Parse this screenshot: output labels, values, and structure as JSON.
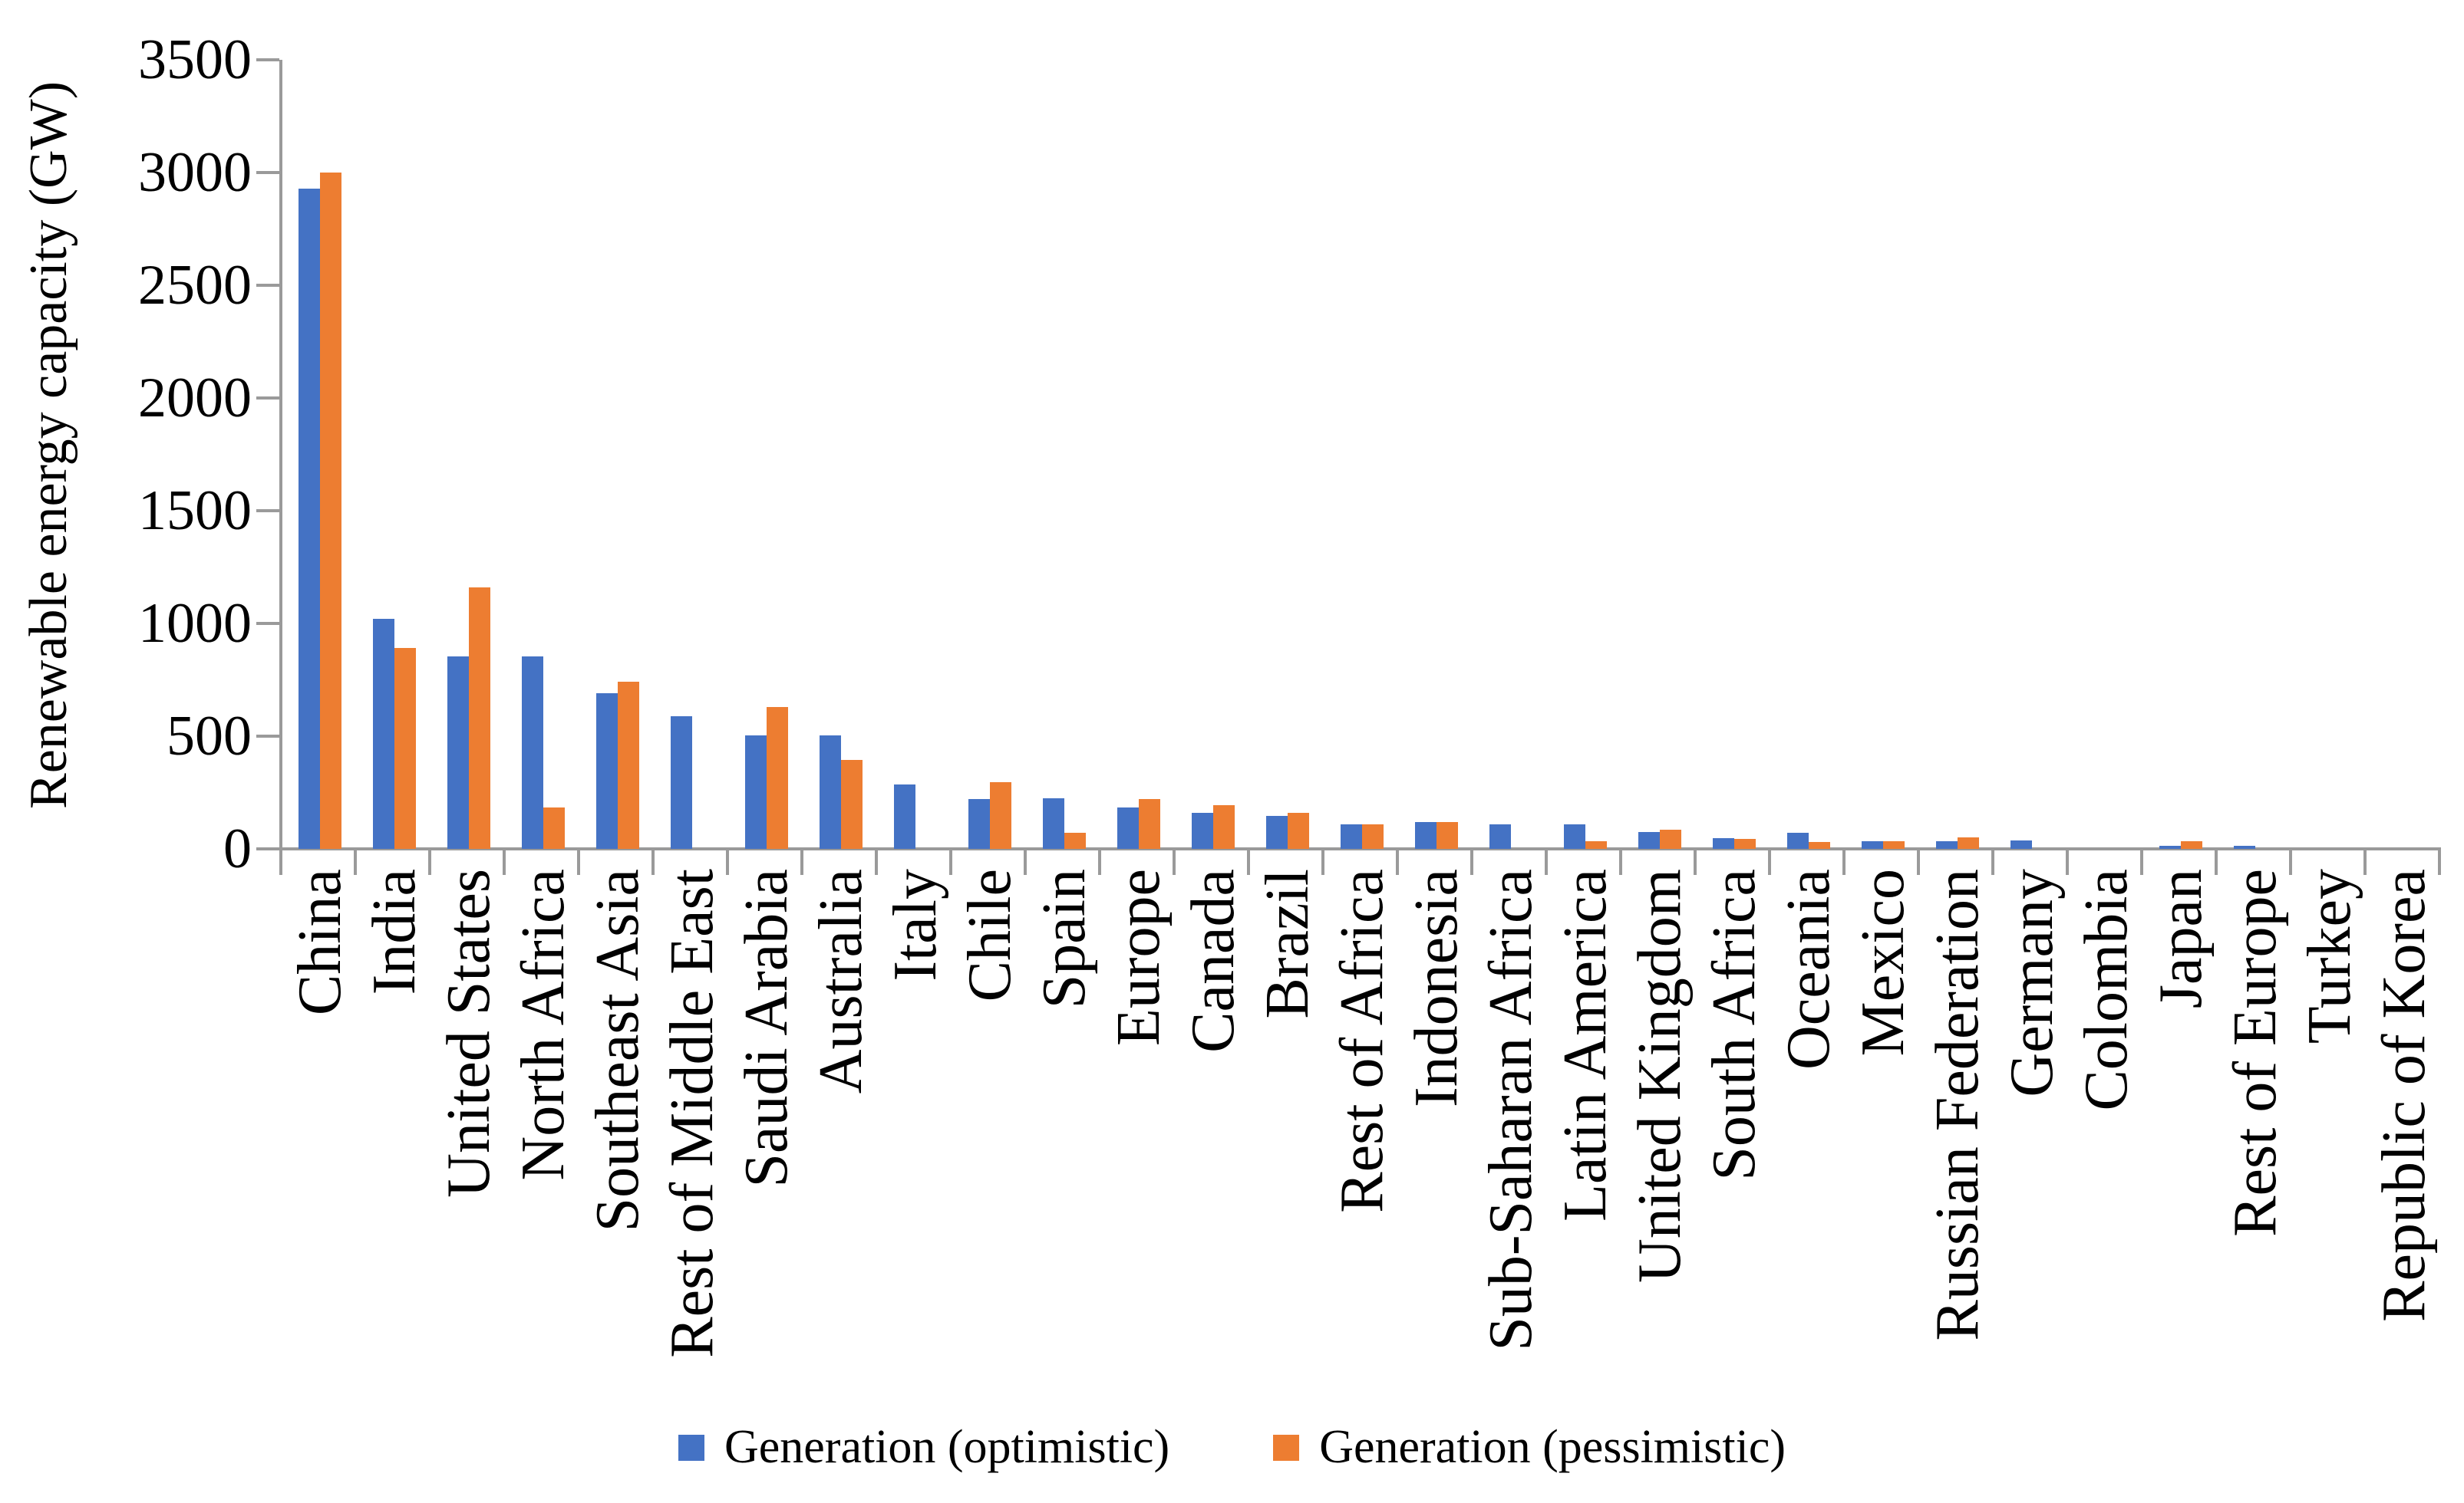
{
  "chart_data": {
    "type": "bar",
    "title": "",
    "xlabel": "",
    "ylabel": "Renewable energy capacity (GW)",
    "ylim": [
      0,
      3500
    ],
    "yticks": [
      0,
      500,
      1000,
      1500,
      2000,
      2500,
      3000,
      3500
    ],
    "grid": false,
    "legend_position": "bottom-center",
    "categories": [
      "China",
      "India",
      "United States",
      "North Africa",
      "Southeast Asia",
      "Rest of Middle East",
      "Saudi Arabia",
      "Australia",
      "Italy",
      "Chile",
      "Spain",
      "Europe",
      "Canada",
      "Brazil",
      "Rest of Africa",
      "Indonesia",
      "Sub-Saharan Africa",
      "Latin America",
      "United Kingdom",
      "South Africa",
      "Oceania",
      "Mexico",
      "Russian Federation",
      "Germany",
      "Colombia",
      "Japan",
      "Rest of Europe",
      "Turkey",
      "Republic of Korea"
    ],
    "series": [
      {
        "name": "Generation (optimistic)",
        "color": "#4472C4",
        "values": [
          2930,
          1020,
          855,
          855,
          690,
          590,
          505,
          505,
          285,
          220,
          225,
          185,
          160,
          145,
          110,
          120,
          110,
          110,
          75,
          48,
          70,
          34,
          35,
          37,
          0,
          14,
          12,
          0,
          0
        ]
      },
      {
        "name": "Generation (pessimistic)",
        "color": "#ED7D31",
        "values": [
          3000,
          890,
          1160,
          185,
          740,
          0,
          630,
          395,
          0,
          295,
          70,
          220,
          195,
          160,
          110,
          120,
          0,
          35,
          85,
          44,
          32,
          34,
          50,
          0,
          0,
          34,
          0,
          0,
          0
        ]
      }
    ]
  },
  "colors": {
    "axis": "#9A9A9A",
    "text": "#000000",
    "background": "#FFFFFF",
    "series_optimistic": "#4472C4",
    "series_pessimistic": "#ED7D31"
  }
}
